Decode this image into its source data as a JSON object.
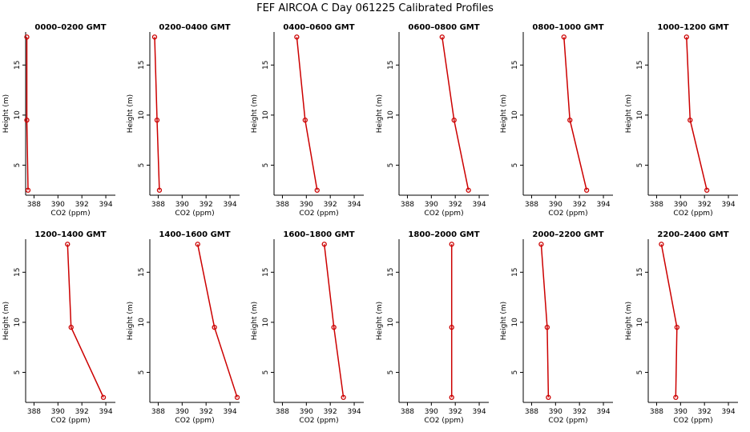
{
  "title": "FEF AIRCOA C  Day 061225  Calibrated Profiles",
  "chart_data": [
    {
      "type": "line",
      "title": "0000–0200 GMT",
      "xlabel": "CO2 (ppm)",
      "ylabel": "Height (m)",
      "xlim": [
        387.3,
        394.8
      ],
      "ylim": [
        2,
        18.3
      ],
      "xticks": [
        388,
        390,
        392,
        394
      ],
      "yticks": [
        5,
        10,
        15
      ],
      "series": [
        {
          "x": [
            387.4,
            387.4,
            387.5
          ],
          "y": [
            17.8,
            9.5,
            2.5
          ]
        }
      ]
    },
    {
      "type": "line",
      "title": "0200–0400 GMT",
      "xlabel": "CO2 (ppm)",
      "ylabel": "Height (m)",
      "xlim": [
        387.3,
        394.8
      ],
      "ylim": [
        2,
        18.3
      ],
      "xticks": [
        388,
        390,
        392,
        394
      ],
      "yticks": [
        5,
        10,
        15
      ],
      "series": [
        {
          "x": [
            387.7,
            387.9,
            388.1
          ],
          "y": [
            17.8,
            9.5,
            2.5
          ]
        }
      ]
    },
    {
      "type": "line",
      "title": "0400–0600 GMT",
      "xlabel": "CO2 (ppm)",
      "ylabel": "Height (m)",
      "xlim": [
        387.3,
        394.8
      ],
      "ylim": [
        2,
        18.3
      ],
      "xticks": [
        388,
        390,
        392,
        394
      ],
      "yticks": [
        5,
        10,
        15
      ],
      "series": [
        {
          "x": [
            389.2,
            389.9,
            390.9
          ],
          "y": [
            17.8,
            9.5,
            2.5
          ]
        }
      ]
    },
    {
      "type": "line",
      "title": "0600–0800 GMT",
      "xlabel": "CO2 (ppm)",
      "ylabel": "Height (m)",
      "xlim": [
        387.3,
        394.8
      ],
      "ylim": [
        2,
        18.3
      ],
      "xticks": [
        388,
        390,
        392,
        394
      ],
      "yticks": [
        5,
        10,
        15
      ],
      "series": [
        {
          "x": [
            390.9,
            391.9,
            393.1
          ],
          "y": [
            17.8,
            9.5,
            2.5
          ]
        }
      ]
    },
    {
      "type": "line",
      "title": "0800–1000 GMT",
      "xlabel": "CO2 (ppm)",
      "ylabel": "Height (m)",
      "xlim": [
        387.3,
        394.8
      ],
      "ylim": [
        2,
        18.3
      ],
      "xticks": [
        388,
        390,
        392,
        394
      ],
      "yticks": [
        5,
        10,
        15
      ],
      "series": [
        {
          "x": [
            390.7,
            391.2,
            392.6
          ],
          "y": [
            17.8,
            9.5,
            2.5
          ]
        }
      ]
    },
    {
      "type": "line",
      "title": "1000–1200 GMT",
      "xlabel": "CO2 (ppm)",
      "ylabel": "Height (m)",
      "xlim": [
        387.3,
        394.8
      ],
      "ylim": [
        2,
        18.3
      ],
      "xticks": [
        388,
        390,
        392,
        394
      ],
      "yticks": [
        5,
        10,
        15
      ],
      "series": [
        {
          "x": [
            390.5,
            390.8,
            392.2
          ],
          "y": [
            17.8,
            9.5,
            2.5
          ]
        }
      ]
    },
    {
      "type": "line",
      "title": "1200–1400 GMT",
      "xlabel": "CO2 (ppm)",
      "ylabel": "Height (m)",
      "xlim": [
        387.3,
        394.8
      ],
      "ylim": [
        2,
        18.3
      ],
      "xticks": [
        388,
        390,
        392,
        394
      ],
      "yticks": [
        5,
        10,
        15
      ],
      "series": [
        {
          "x": [
            390.8,
            391.1,
            393.8
          ],
          "y": [
            17.8,
            9.5,
            2.5
          ]
        }
      ]
    },
    {
      "type": "line",
      "title": "1400–1600 GMT",
      "xlabel": "CO2 (ppm)",
      "ylabel": "Height (m)",
      "xlim": [
        387.3,
        394.8
      ],
      "ylim": [
        2,
        18.3
      ],
      "xticks": [
        388,
        390,
        392,
        394
      ],
      "yticks": [
        5,
        10,
        15
      ],
      "series": [
        {
          "x": [
            391.3,
            392.7,
            394.6
          ],
          "y": [
            17.8,
            9.5,
            2.5
          ]
        }
      ]
    },
    {
      "type": "line",
      "title": "1600–1800 GMT",
      "xlabel": "CO2 (ppm)",
      "ylabel": "Height (m)",
      "xlim": [
        387.3,
        394.8
      ],
      "ylim": [
        2,
        18.3
      ],
      "xticks": [
        388,
        390,
        392,
        394
      ],
      "yticks": [
        5,
        10,
        15
      ],
      "series": [
        {
          "x": [
            391.5,
            392.3,
            393.1
          ],
          "y": [
            17.8,
            9.5,
            2.5
          ]
        }
      ]
    },
    {
      "type": "line",
      "title": "1800–2000 GMT",
      "xlabel": "CO2 (ppm)",
      "ylabel": "Height (m)",
      "xlim": [
        387.3,
        394.8
      ],
      "ylim": [
        2,
        18.3
      ],
      "xticks": [
        388,
        390,
        392,
        394
      ],
      "yticks": [
        5,
        10,
        15
      ],
      "series": [
        {
          "x": [
            391.7,
            391.7,
            391.7
          ],
          "y": [
            17.8,
            9.5,
            2.5
          ]
        }
      ]
    },
    {
      "type": "line",
      "title": "2000–2200 GMT",
      "xlabel": "CO2 (ppm)",
      "ylabel": "Height (m)",
      "xlim": [
        387.3,
        394.8
      ],
      "ylim": [
        2,
        18.3
      ],
      "xticks": [
        388,
        390,
        392,
        394
      ],
      "yticks": [
        5,
        10,
        15
      ],
      "series": [
        {
          "x": [
            388.8,
            389.3,
            389.4
          ],
          "y": [
            17.8,
            9.5,
            2.5
          ]
        }
      ]
    },
    {
      "type": "line",
      "title": "2200–2400 GMT",
      "xlabel": "CO2 (ppm)",
      "ylabel": "Height (m)",
      "xlim": [
        387.3,
        394.8
      ],
      "ylim": [
        2,
        18.3
      ],
      "xticks": [
        388,
        390,
        392,
        394
      ],
      "yticks": [
        5,
        10,
        15
      ],
      "series": [
        {
          "x": [
            388.4,
            389.7,
            389.6
          ],
          "y": [
            17.8,
            9.5,
            2.5
          ]
        }
      ]
    }
  ],
  "colors": {
    "series": "#cc0000",
    "axis": "#000000"
  }
}
